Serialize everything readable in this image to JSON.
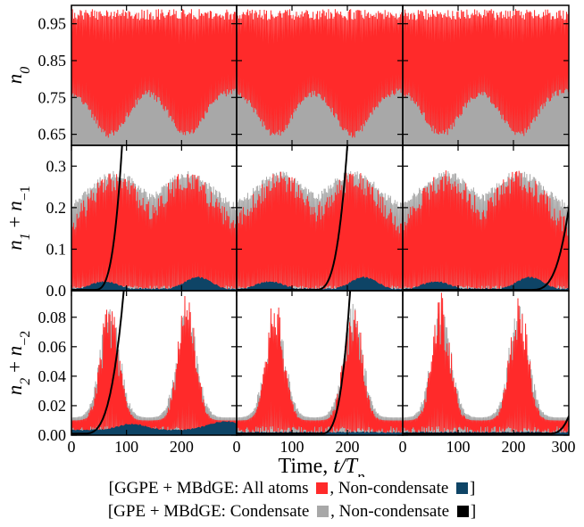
{
  "chart_data": {
    "type": "line",
    "layout": "3x3 grid of line panels sharing x axis",
    "xlabel": "Time, t/T",
    "xlabel_sub": "p",
    "xlim": [
      0,
      300
    ],
    "xticks": [
      "0",
      "100",
      "200",
      "0",
      "100",
      "200",
      "0",
      "100",
      "200",
      "300"
    ],
    "rows": [
      {
        "ylabel_main": "n",
        "ylabel_sub": "0",
        "ylim": [
          0.62,
          1.0
        ],
        "yticks": [
          0.65,
          0.75,
          0.85,
          0.95
        ],
        "ytick_labels": [
          "0.65",
          "0.75",
          "0.85",
          "0.95"
        ]
      },
      {
        "ylabel_main": "n",
        "ylabel_sub": "1",
        "ylabel_mid": " + n",
        "ylabel_sub2": "−1",
        "ylim": [
          0,
          0.35
        ],
        "yticks": [
          0,
          0.1,
          0.2,
          0.3
        ],
        "ytick_labels": [
          "0.0",
          "0.1",
          "0.2",
          "0.3"
        ]
      },
      {
        "ylabel_main": "n",
        "ylabel_sub": "2",
        "ylabel_mid": " + n",
        "ylabel_sub2": "−2",
        "ylim": [
          0,
          0.098
        ],
        "yticks": [
          0,
          0.02,
          0.04,
          0.06,
          0.08
        ],
        "ytick_labels": [
          "0.00",
          "0.02",
          "0.04",
          "0.06",
          "0.08"
        ]
      }
    ],
    "series": [
      {
        "name": "GGPE + MBdGE: All atoms",
        "color": "#ff2a2a",
        "style": "rapidly oscillating line"
      },
      {
        "name": "GGPE + MBdGE: Non-condensate",
        "color": "#0e4466",
        "style": "filled band"
      },
      {
        "name": "GPE + MBdGE: Condensate",
        "color": "#a8a8a8",
        "style": "rapidly oscillating line"
      },
      {
        "name": "GPE + MBdGE: Non-condensate",
        "color": "#000000",
        "style": "line"
      }
    ],
    "envelopes": {
      "n0": {
        "red_max": 0.99,
        "red_min_range": [
          0.66,
          0.78
        ],
        "red_dips_at": [
          70,
          210
        ],
        "gray_min_range": [
          0.76,
          0.81
        ],
        "gray_max": 0.99
      },
      "n1": {
        "red_max_range": [
          0.19,
          0.29
        ],
        "red_peaks_at": [
          80,
          210
        ],
        "gray_max": 0.29,
        "navy_bumps": [
          {
            "t": 60,
            "h": 0.02
          },
          {
            "t": 230,
            "h": 0.03
          }
        ],
        "black_growth": [
          {
            "panel": 1,
            "t_start": 40,
            "t_end": 92,
            "n_end": 0.35
          },
          {
            "panel": 2,
            "t_start": 140,
            "t_end": 200,
            "n_end": 0.35
          },
          {
            "panel": 3,
            "t_start": 230,
            "t_end": 300,
            "n_end": 0.2
          }
        ]
      },
      "n2": {
        "red_peaks_at": [
          70,
          210
        ],
        "red_peak_max": 0.095,
        "red_base": 0.006,
        "gray_peak_max": 0.09,
        "black_growth": [
          {
            "panel": 1,
            "t_start": 20,
            "t_end": 95,
            "n_end": 0.098
          },
          {
            "panel": 2,
            "t_start": 150,
            "t_end": 205,
            "n_end": 0.098
          },
          {
            "panel": 3,
            "t_start": 260,
            "t_end": 300,
            "n_end": 0.013
          }
        ]
      }
    }
  },
  "legend": {
    "line1_prefix": "[GGPE + MBdGE: All atoms ",
    "line1_mid": ", Non-condensate ",
    "line1_suffix": "]",
    "line1_color1": "#ff2a2a",
    "line1_color2": "#0e4466",
    "line2_prefix": "[GPE + MBdGE: Condensate ",
    "line2_mid": ", Non-condensate ",
    "line2_suffix": "]",
    "line2_color1": "#a8a8a8",
    "line2_color2": "#000000"
  }
}
